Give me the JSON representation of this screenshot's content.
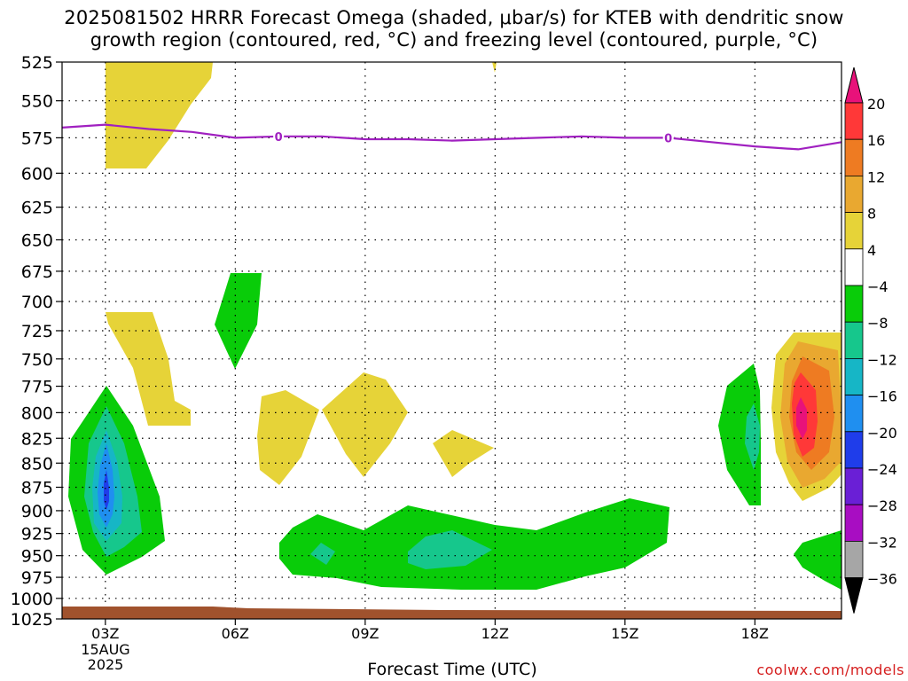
{
  "title_line1": "2025081502 HRRR Forecast Omega (shaded, μbar/s) for KTEB with dendritic snow",
  "title_line2": "growth region (contoured, red, °C) and freezing level (contoured, purple, °C)",
  "credit": "coolwx.com/models",
  "chart_data": {
    "type": "heatmap",
    "title": "2025081502 HRRR Forecast Omega (shaded, μbar/s) for KTEB with dendritic snow growth region (contoured, red, °C) and freezing level (contoured, purple, °C)",
    "xlabel": "Forecast Time (UTC)",
    "ylabel": "",
    "x_ticks": [
      "03Z",
      "06Z",
      "09Z",
      "12Z",
      "15Z",
      "18Z"
    ],
    "x_tick_hours": [
      3,
      6,
      9,
      12,
      15,
      18
    ],
    "x_date_line1": "15AUG",
    "x_date_line2": "2025",
    "xlim": [
      2,
      20
    ],
    "y_ticks": [
      "525",
      "550",
      "575",
      "600",
      "625",
      "650",
      "675",
      "700",
      "725",
      "750",
      "775",
      "800",
      "825",
      "850",
      "875",
      "900",
      "925",
      "950",
      "975",
      "1000",
      "1025"
    ],
    "y_tick_values": [
      525,
      550,
      575,
      600,
      625,
      650,
      675,
      700,
      725,
      750,
      775,
      800,
      825,
      850,
      875,
      900,
      925,
      950,
      975,
      1000,
      1025
    ],
    "ylim": [
      1025,
      525
    ],
    "yscale": "log (pressure, hPa)",
    "grid": true,
    "colorbar": {
      "labels": [
        "20",
        "16",
        "12",
        "8",
        "4",
        "−4",
        "−8",
        "−12",
        "−16",
        "−20",
        "−24",
        "−28",
        "−32",
        "−36"
      ],
      "colors": [
        "#ff3838",
        "#ee7b22",
        "#e9a830",
        "#e6d338",
        "#ffffff",
        "#09cc09",
        "#16c78c",
        "#16b6c6",
        "#1f8ff0",
        "#1f3dea",
        "#6a1fd6",
        "#a80dc2",
        "#a6a6a6"
      ],
      "top_color": "#e8127a",
      "bottom_color": "#000000"
    },
    "freezing_level": {
      "label": "0",
      "color": "#a020c0",
      "points": [
        [
          2,
          568
        ],
        [
          3,
          566
        ],
        [
          4,
          569
        ],
        [
          5,
          571
        ],
        [
          6,
          575
        ],
        [
          7,
          574
        ],
        [
          8,
          574
        ],
        [
          9,
          576
        ],
        [
          10,
          576
        ],
        [
          11,
          577
        ],
        [
          12,
          576
        ],
        [
          13,
          575
        ],
        [
          14,
          574
        ],
        [
          15,
          575
        ],
        [
          16,
          575
        ],
        [
          17,
          578
        ],
        [
          18,
          581
        ],
        [
          19,
          583
        ],
        [
          20,
          578
        ]
      ]
    },
    "ground": {
      "color": "#a0522d",
      "top_pressure": 1017
    }
  }
}
